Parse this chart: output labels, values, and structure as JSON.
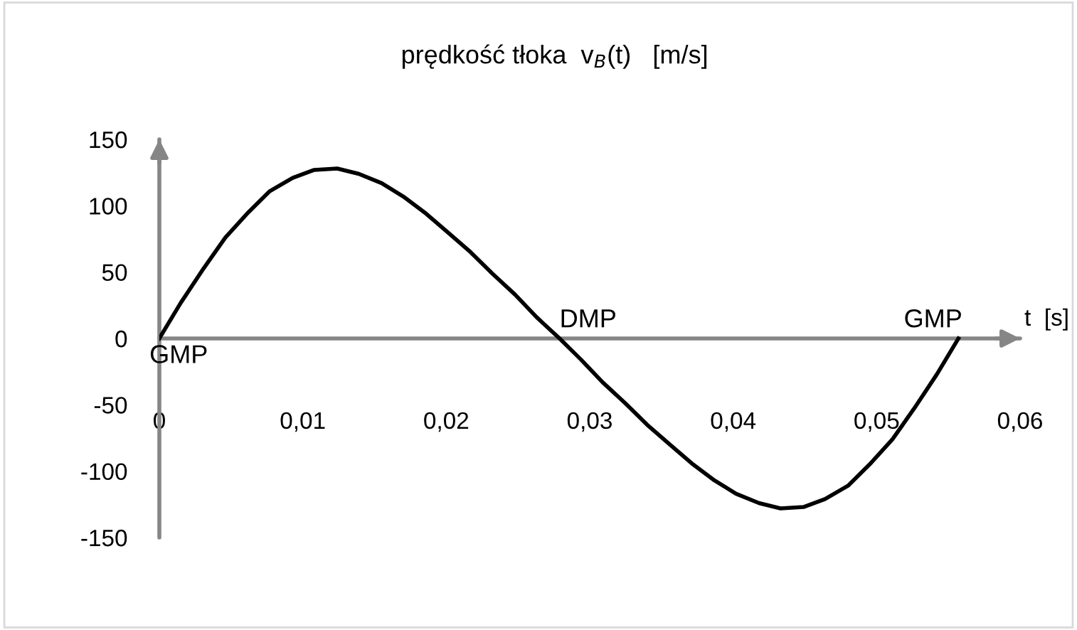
{
  "chart_data": {
    "type": "line",
    "title": "prędkość tłoka  v$_{B}$(t)   [m/s]",
    "xlabel": "t  [s]",
    "x": [
      0,
      0.0015,
      0.0031,
      0.0046,
      0.0062,
      0.0077,
      0.0093,
      0.0108,
      0.0124,
      0.0139,
      0.0155,
      0.017,
      0.0186,
      0.0201,
      0.0217,
      0.0232,
      0.0248,
      0.0263,
      0.0279,
      0.0294,
      0.0309,
      0.0325,
      0.034,
      0.0356,
      0.0371,
      0.0387,
      0.0402,
      0.0418,
      0.0433,
      0.0449,
      0.0464,
      0.048,
      0.0495,
      0.0511,
      0.0526,
      0.0542,
      0.0557
    ],
    "series": [
      {
        "color": "#000000",
        "values": [
          0,
          27,
          53,
          76,
          95,
          111,
          121,
          127,
          128,
          124,
          117,
          107,
          94,
          80,
          65,
          49,
          33,
          16,
          0,
          -16,
          -33,
          -49,
          -65,
          -80,
          -94,
          -107,
          -117,
          -124,
          -128,
          -127,
          -121,
          -111,
          -95,
          -76,
          -53,
          -27,
          0
        ]
      }
    ],
    "xlim": [
      0,
      0.06
    ],
    "xticks": [
      {
        "value": 0,
        "label": "0"
      },
      {
        "value": 0.01,
        "label": "0,01"
      },
      {
        "value": 0.02,
        "label": "0,02"
      },
      {
        "value": 0.03,
        "label": "0,03"
      },
      {
        "value": 0.04,
        "label": "0,04"
      },
      {
        "value": 0.05,
        "label": "0,05"
      },
      {
        "value": 0.06,
        "label": "0,06"
      }
    ],
    "ylim": [
      -150,
      150
    ],
    "yticks": [
      -150,
      -100,
      -50,
      0,
      50,
      100,
      150
    ],
    "annotations": [
      {
        "text": "GMP",
        "x": 0,
        "y": 0
      },
      {
        "text": "DMP",
        "x": 0.0279,
        "y": 0
      },
      {
        "text": "GMP",
        "x": 0.0557,
        "y": 0
      }
    ],
    "grid": false,
    "legend": false,
    "marker": "none",
    "line_style": "solid"
  }
}
